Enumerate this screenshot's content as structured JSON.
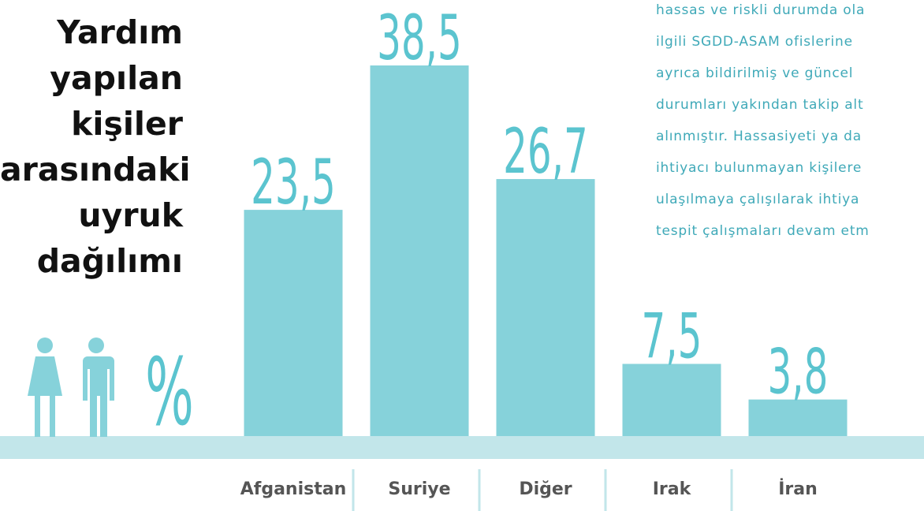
{
  "chart_data": {
    "type": "bar",
    "title": "Yardım yapılan kişiler arasındaki uyruk dağılımı",
    "unit": "%",
    "categories": [
      "Afganistan",
      "Suriye",
      "Diğer",
      "Irak",
      "İran"
    ],
    "values": [
      23.5,
      38.5,
      26.7,
      7.5,
      3.8
    ],
    "value_labels": [
      "23,5",
      "38,5",
      "26,7",
      "7,5",
      "3,8"
    ],
    "color": "#86d2da",
    "note_lines": [
      "hassas ve riskli durumda ola",
      "ilgili SGDD-ASAM ofislerine",
      "ayrıca bildirilmiş ve güncel",
      "durumları yakından takip alt",
      "alınmıştır. Hassasiyeti ya da",
      "ihtiyacı bulunmayan kişilere",
      "ulaşılmaya çalışılarak ihtiya",
      "tespit çalışmaları devam etm"
    ]
  }
}
